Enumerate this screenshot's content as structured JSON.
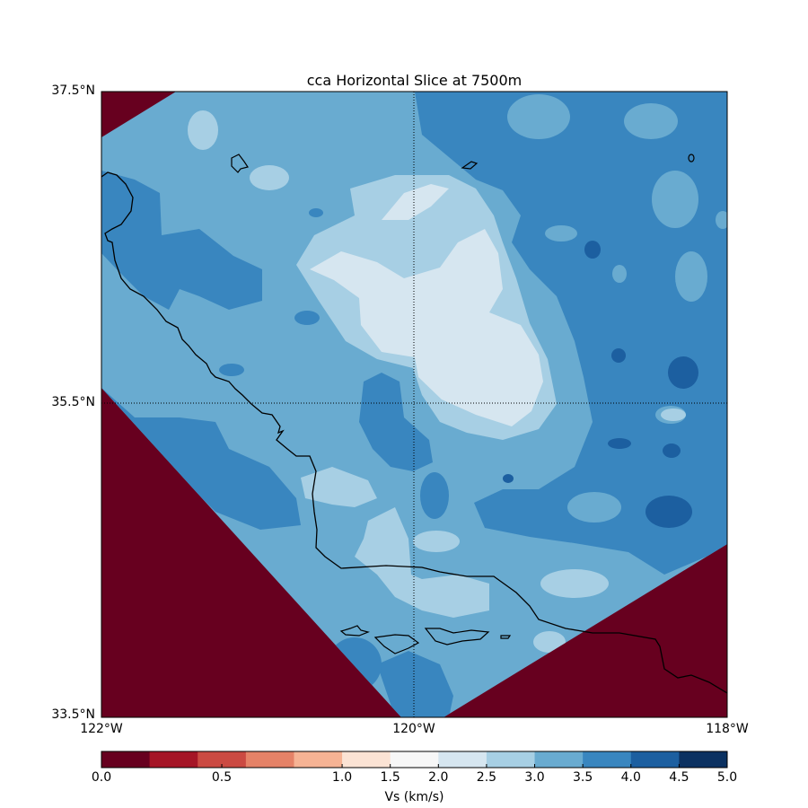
{
  "chart_data": {
    "type": "heatmap",
    "subtype": "filled-contour-map",
    "title": "cca Horizontal Slice at 7500m",
    "xticks": [
      "122°W",
      "120°W",
      "118°W"
    ],
    "yticks": [
      "37.5°N",
      "35.5°N",
      "33.5°N"
    ],
    "xlim_lon": [
      -122,
      -118
    ],
    "ylim_lat": [
      33.5,
      37.5
    ],
    "grid": "dotted lines at 120°W and 35.5°N",
    "colorbar": {
      "label": "Vs (km/s)",
      "orientation": "horizontal",
      "placement": "bottom",
      "levels": [
        0.0,
        0.2,
        0.4,
        0.6,
        0.8,
        1.0,
        1.5,
        2.0,
        2.5,
        3.0,
        3.5,
        4.0,
        4.5,
        5.0
      ],
      "tick_labels": [
        "0.0",
        "0.5",
        "1.0",
        "1.5",
        "2.0",
        "2.5",
        "3.0",
        "3.5",
        "4.0",
        "4.5",
        "5.0"
      ],
      "tick_values": [
        0.0,
        0.5,
        1.0,
        1.5,
        2.0,
        2.5,
        3.0,
        3.5,
        4.0,
        4.5,
        5.0
      ],
      "colors": [
        "#67001f",
        "#a51526",
        "#cb4a42",
        "#e58267",
        "#f6b394",
        "#fbe3d4",
        "#f7f7f7",
        "#d6e6f0",
        "#a7cfe4",
        "#69abd0",
        "#3986bf",
        "#1c5fa0",
        "#0b3161"
      ]
    },
    "outside_model_value": 0.0,
    "dominant_range": "3.0-4.0 km/s"
  }
}
